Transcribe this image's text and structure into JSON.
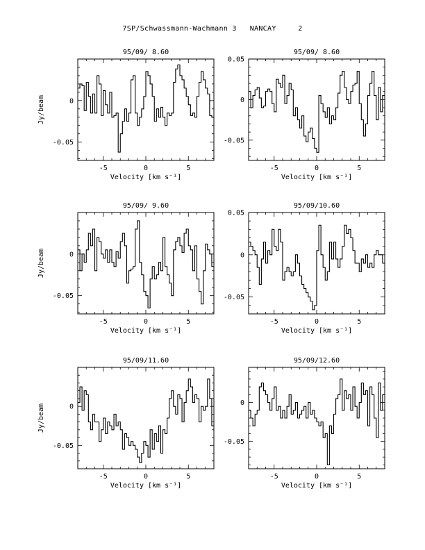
{
  "page": {
    "title": "7SP/Schwassmann-Wachmann 3   NANCAY     2"
  },
  "chart_data": [
    {
      "type": "line",
      "title": "95/09/ 8.60",
      "xlabel": "Velocity [km s⁻¹]",
      "ylabel": "Jy/beam",
      "xlim": [
        -8,
        8
      ],
      "ylim": [
        -0.072,
        0.05
      ],
      "xticks": [
        -5,
        0,
        5
      ],
      "yticks": [
        0,
        -0.05
      ],
      "ytick_labels": [
        "0",
        "-0.05"
      ],
      "grid": false,
      "x": [
        -8.0,
        -7.75,
        -7.5,
        -7.25,
        -7.0,
        -6.75,
        -6.5,
        -6.25,
        -6.0,
        -5.75,
        -5.5,
        -5.25,
        -5.0,
        -4.75,
        -4.5,
        -4.25,
        -4.0,
        -3.75,
        -3.5,
        -3.25,
        -3.0,
        -2.75,
        -2.5,
        -2.25,
        -2.0,
        -1.75,
        -1.5,
        -1.25,
        -1.0,
        -0.75,
        -0.5,
        -0.25,
        0.0,
        0.25,
        0.5,
        0.75,
        1.0,
        1.25,
        1.5,
        1.75,
        2.0,
        2.25,
        2.5,
        2.75,
        3.0,
        3.25,
        3.5,
        3.75,
        4.0,
        4.25,
        4.5,
        4.75,
        5.0,
        5.25,
        5.5,
        5.75,
        6.0,
        6.25,
        6.5,
        6.75,
        7.0,
        7.25,
        7.5,
        7.75
      ],
      "y": [
        0.015,
        0.02,
        0.018,
        -0.012,
        0.022,
        0.005,
        -0.015,
        0.008,
        -0.015,
        0.03,
        0.02,
        -0.018,
        0.012,
        -0.005,
        -0.015,
        0.01,
        -0.02,
        -0.018,
        -0.015,
        -0.062,
        -0.04,
        -0.025,
        -0.01,
        -0.025,
        -0.015,
        0.025,
        0.03,
        -0.015,
        -0.03,
        -0.02,
        -0.01,
        0.005,
        0.035,
        0.03,
        0.02,
        0.005,
        -0.025,
        -0.01,
        -0.02,
        -0.008,
        -0.02,
        -0.03,
        -0.015,
        -0.018,
        -0.015,
        0.022,
        0.038,
        0.043,
        0.03,
        0.025,
        0.015,
        0.005,
        -0.005,
        -0.018,
        -0.015,
        -0.02,
        0.005,
        0.022,
        0.035,
        0.025,
        0.015,
        0.008,
        -0.018,
        -0.02
      ]
    },
    {
      "type": "line",
      "title": "95/09/ 8.60",
      "xlabel": "Velocity [km s⁻¹]",
      "ylabel": "",
      "xlim": [
        -8,
        8
      ],
      "ylim": [
        -0.075,
        0.05
      ],
      "xticks": [
        -5,
        0,
        5
      ],
      "yticks": [
        0.05,
        0,
        -0.05
      ],
      "ytick_labels": [
        "0.05",
        "0",
        "-0.05"
      ],
      "grid": false,
      "x": [
        -8.0,
        -7.75,
        -7.5,
        -7.25,
        -7.0,
        -6.75,
        -6.5,
        -6.25,
        -6.0,
        -5.75,
        -5.5,
        -5.25,
        -5.0,
        -4.75,
        -4.5,
        -4.25,
        -4.0,
        -3.75,
        -3.5,
        -3.25,
        -3.0,
        -2.75,
        -2.5,
        -2.25,
        -2.0,
        -1.75,
        -1.5,
        -1.25,
        -1.0,
        -0.75,
        -0.5,
        -0.25,
        0.0,
        0.25,
        0.5,
        0.75,
        1.0,
        1.25,
        1.5,
        1.75,
        2.0,
        2.25,
        2.5,
        2.75,
        3.0,
        3.25,
        3.5,
        3.75,
        4.0,
        4.25,
        4.5,
        4.75,
        5.0,
        5.25,
        5.5,
        5.75,
        6.0,
        6.25,
        6.5,
        6.75,
        7.0,
        7.25,
        7.5,
        7.75
      ],
      "y": [
        0.01,
        -0.01,
        0.005,
        0.012,
        0.015,
        0.002,
        -0.01,
        -0.008,
        0.01,
        0.013,
        0.01,
        -0.005,
        -0.015,
        0.025,
        0.02,
        0.015,
        0.03,
        -0.005,
        0.005,
        0.02,
        0.012,
        -0.02,
        -0.01,
        -0.025,
        -0.035,
        -0.02,
        -0.045,
        -0.052,
        -0.04,
        -0.035,
        -0.048,
        -0.06,
        -0.065,
        0.005,
        -0.005,
        -0.015,
        -0.022,
        -0.01,
        -0.03,
        -0.02,
        -0.025,
        -0.01,
        0.008,
        0.03,
        0.035,
        0.015,
        0.0,
        -0.005,
        0.01,
        0.018,
        0.02,
        0.035,
        -0.005,
        -0.025,
        -0.045,
        -0.03,
        0.005,
        0.02,
        0.035,
        0.005,
        -0.025,
        0.015,
        -0.015,
        0.005
      ]
    },
    {
      "type": "line",
      "title": "95/09/ 9.60",
      "xlabel": "Velocity [km s⁻¹]",
      "ylabel": "Jy/beam",
      "xlim": [
        -8,
        8
      ],
      "ylim": [
        -0.072,
        0.05
      ],
      "xticks": [
        -5,
        0,
        5
      ],
      "yticks": [
        0,
        -0.05
      ],
      "ytick_labels": [
        "0",
        "-0.05"
      ],
      "grid": false,
      "x": [
        -8.0,
        -7.75,
        -7.5,
        -7.25,
        -7.0,
        -6.75,
        -6.5,
        -6.25,
        -6.0,
        -5.75,
        -5.5,
        -5.25,
        -5.0,
        -4.75,
        -4.5,
        -4.25,
        -4.0,
        -3.75,
        -3.5,
        -3.25,
        -3.0,
        -2.75,
        -2.5,
        -2.25,
        -2.0,
        -1.75,
        -1.5,
        -1.25,
        -1.0,
        -0.75,
        -0.5,
        -0.25,
        0.0,
        0.25,
        0.5,
        0.75,
        1.0,
        1.25,
        1.5,
        1.75,
        2.0,
        2.25,
        2.5,
        2.75,
        3.0,
        3.25,
        3.5,
        3.75,
        4.0,
        4.25,
        4.5,
        4.75,
        5.0,
        5.25,
        5.5,
        5.75,
        6.0,
        6.25,
        6.5,
        6.75,
        7.0,
        7.25,
        7.5,
        7.75
      ],
      "y": [
        0.005,
        -0.02,
        0.0,
        -0.01,
        0.005,
        0.025,
        0.01,
        0.03,
        -0.02,
        0.02,
        0.015,
        0.0,
        -0.005,
        0.005,
        -0.01,
        0.005,
        -0.01,
        -0.015,
        0.003,
        -0.005,
        0.015,
        0.025,
        0.01,
        -0.035,
        -0.02,
        -0.018,
        -0.015,
        0.03,
        0.04,
        -0.01,
        -0.025,
        -0.045,
        -0.05,
        -0.065,
        -0.03,
        -0.015,
        -0.03,
        -0.025,
        -0.01,
        -0.02,
        0.02,
        -0.015,
        -0.025,
        -0.035,
        -0.05,
        0.005,
        0.015,
        0.02,
        0.01,
        0.002,
        0.025,
        0.03,
        0.01,
        0.005,
        -0.02,
        0.01,
        -0.03,
        -0.045,
        -0.06,
        -0.02,
        0.012,
        0.005,
        0.0,
        -0.015
      ]
    },
    {
      "type": "line",
      "title": "95/09/10.60",
      "xlabel": "Velocity [km s⁻¹]",
      "ylabel": "",
      "xlim": [
        -8,
        8
      ],
      "ylim": [
        -0.07,
        0.05
      ],
      "xticks": [
        -5,
        0,
        5
      ],
      "yticks": [
        0.05,
        0,
        -0.05
      ],
      "ytick_labels": [
        "0.05",
        "0",
        "-0.05"
      ],
      "grid": false,
      "x": [
        -8.0,
        -7.75,
        -7.5,
        -7.25,
        -7.0,
        -6.75,
        -6.5,
        -6.25,
        -6.0,
        -5.75,
        -5.5,
        -5.25,
        -5.0,
        -4.75,
        -4.5,
        -4.25,
        -4.0,
        -3.75,
        -3.5,
        -3.25,
        -3.0,
        -2.75,
        -2.5,
        -2.25,
        -2.0,
        -1.75,
        -1.5,
        -1.25,
        -1.0,
        -0.75,
        -0.5,
        -0.25,
        0.0,
        0.25,
        0.5,
        0.75,
        1.0,
        1.25,
        1.5,
        1.75,
        2.0,
        2.25,
        2.5,
        2.75,
        3.0,
        3.25,
        3.5,
        3.75,
        4.0,
        4.25,
        4.5,
        4.75,
        5.0,
        5.25,
        5.5,
        5.75,
        6.0,
        6.25,
        6.5,
        6.75,
        7.0,
        7.25,
        7.5,
        7.75
      ],
      "y": [
        0.015,
        0.01,
        0.005,
        0.0,
        -0.015,
        -0.035,
        -0.005,
        0.015,
        -0.01,
        0.005,
        0.0,
        0.03,
        0.01,
        0.005,
        0.03,
        0.015,
        -0.03,
        -0.02,
        -0.015,
        -0.02,
        -0.025,
        -0.02,
        0.0,
        -0.01,
        -0.025,
        -0.035,
        -0.04,
        -0.045,
        -0.05,
        -0.055,
        -0.065,
        -0.06,
        0.005,
        0.035,
        0.0,
        -0.015,
        -0.03,
        -0.02,
        0.015,
        -0.005,
        0.015,
        -0.005,
        -0.015,
        -0.005,
        0.01,
        0.035,
        0.025,
        0.03,
        0.02,
        0.005,
        -0.01,
        -0.01,
        -0.02,
        -0.005,
        -0.01,
        0.0,
        -0.015,
        -0.01,
        -0.015,
        0.0,
        0.005,
        0.0,
        0.0,
        -0.01
      ]
    },
    {
      "type": "line",
      "title": "95/09/11.60",
      "xlabel": "Velocity [km s⁻¹]",
      "ylabel": "Jy/beam",
      "xlim": [
        -8,
        8
      ],
      "ylim": [
        -0.08,
        0.05
      ],
      "xticks": [
        -5,
        0,
        5
      ],
      "yticks": [
        0,
        -0.05
      ],
      "ytick_labels": [
        "0",
        "-0.05"
      ],
      "grid": false,
      "x": [
        -8.0,
        -7.75,
        -7.5,
        -7.25,
        -7.0,
        -6.75,
        -6.5,
        -6.25,
        -6.0,
        -5.75,
        -5.5,
        -5.25,
        -5.0,
        -4.75,
        -4.5,
        -4.25,
        -4.0,
        -3.75,
        -3.5,
        -3.25,
        -3.0,
        -2.75,
        -2.5,
        -2.25,
        -2.0,
        -1.75,
        -1.5,
        -1.25,
        -1.0,
        -0.75,
        -0.5,
        -0.25,
        0.0,
        0.25,
        0.5,
        0.75,
        1.0,
        1.25,
        1.5,
        1.75,
        2.0,
        2.25,
        2.5,
        2.75,
        3.0,
        3.25,
        3.5,
        3.75,
        4.0,
        4.25,
        4.5,
        4.75,
        5.0,
        5.25,
        5.5,
        5.75,
        6.0,
        6.25,
        6.5,
        6.75,
        7.0,
        7.25,
        7.5,
        7.75
      ],
      "y": [
        0.005,
        0.025,
        -0.005,
        0.02,
        0.015,
        -0.02,
        -0.03,
        -0.01,
        -0.02,
        -0.02,
        -0.045,
        -0.03,
        -0.015,
        -0.035,
        -0.02,
        -0.025,
        -0.03,
        -0.01,
        -0.025,
        -0.02,
        -0.03,
        -0.055,
        -0.035,
        -0.04,
        -0.05,
        -0.045,
        -0.05,
        -0.055,
        -0.065,
        -0.072,
        -0.06,
        -0.045,
        -0.05,
        -0.065,
        -0.03,
        -0.055,
        -0.035,
        -0.045,
        -0.025,
        -0.06,
        -0.03,
        -0.035,
        -0.015,
        0.01,
        0.02,
        0.0,
        -0.01,
        0.015,
        0.01,
        -0.02,
        0.005,
        0.02,
        0.035,
        0.025,
        0.005,
        0.015,
        0.01,
        -0.02,
        0.0,
        -0.005,
        0.0,
        0.035,
        0.01,
        -0.025
      ]
    },
    {
      "type": "line",
      "title": "95/09/12.60",
      "xlabel": "Velocity [km s⁻¹]",
      "ylabel": "",
      "xlim": [
        -8,
        8
      ],
      "ylim": [
        -0.085,
        0.045
      ],
      "xticks": [
        -5,
        0,
        5
      ],
      "yticks": [
        0,
        -0.05
      ],
      "ytick_labels": [
        "0",
        "-0.05"
      ],
      "grid": false,
      "x": [
        -8.0,
        -7.75,
        -7.5,
        -7.25,
        -7.0,
        -6.75,
        -6.5,
        -6.25,
        -6.0,
        -5.75,
        -5.5,
        -5.25,
        -5.0,
        -4.75,
        -4.5,
        -4.25,
        -4.0,
        -3.75,
        -3.5,
        -3.25,
        -3.0,
        -2.75,
        -2.5,
        -2.25,
        -2.0,
        -1.75,
        -1.5,
        -1.25,
        -1.0,
        -0.75,
        -0.5,
        -0.25,
        0.0,
        0.25,
        0.5,
        0.75,
        1.0,
        1.25,
        1.5,
        1.75,
        2.0,
        2.25,
        2.5,
        2.75,
        3.0,
        3.25,
        3.5,
        3.75,
        4.0,
        4.25,
        4.5,
        4.75,
        5.0,
        5.25,
        5.5,
        5.75,
        6.0,
        6.25,
        6.5,
        6.75,
        7.0,
        7.25,
        7.5,
        7.75
      ],
      "y": [
        -0.01,
        -0.02,
        -0.03,
        -0.015,
        -0.01,
        0.02,
        0.025,
        0.015,
        0.01,
        0.0,
        -0.01,
        0.005,
        0.02,
        -0.01,
        -0.005,
        -0.02,
        -0.01,
        -0.02,
        -0.005,
        0.01,
        -0.015,
        -0.01,
        0.0,
        -0.02,
        -0.015,
        -0.01,
        -0.005,
        -0.02,
        0.0,
        -0.015,
        -0.01,
        -0.02,
        -0.025,
        -0.03,
        -0.025,
        -0.045,
        -0.04,
        -0.08,
        -0.03,
        -0.04,
        -0.015,
        0.005,
        0.01,
        0.03,
        -0.01,
        0.015,
        0.005,
        0.01,
        -0.01,
        0.02,
        -0.005,
        -0.02,
        0.0,
        0.025,
        0.01,
        0.015,
        -0.03,
        0.02,
        0.01,
        -0.02,
        -0.045,
        0.025,
        -0.01,
        0.01
      ]
    }
  ]
}
